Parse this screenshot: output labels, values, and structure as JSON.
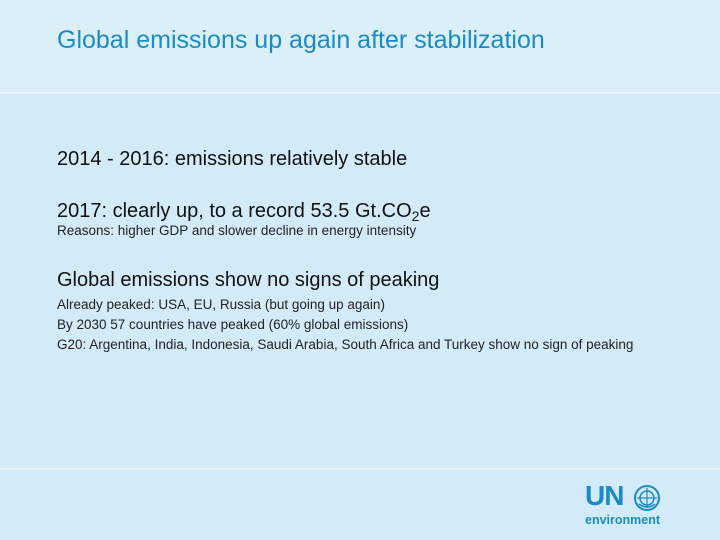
{
  "slide": {
    "title": "Global emissions up again after stabilization"
  },
  "content": {
    "point1": "2014 - 2016: emissions relatively stable",
    "point2_prefix": "2017: clearly up, to a record 53.5 Gt.CO",
    "point2_subscript": "2",
    "point2_suffix": "e",
    "point2_reason": "Reasons: higher GDP and slower decline in energy intensity",
    "point3": "Global emissions show no signs of peaking",
    "point3_details": [
      "Already peaked: USA, EU, Russia (but going up again)",
      "By 2030 57 countries have peaked (60% global emissions)",
      "G20: Argentina, India, Indonesia, Saudi Arabia, South Africa and Turkey show no sign of peaking"
    ]
  },
  "logo": {
    "top": "UN",
    "bottom": "environment",
    "emblem": "un-emblem-icon"
  },
  "colors": {
    "background": "#d3ebf8",
    "accent": "#1b8bc6"
  }
}
